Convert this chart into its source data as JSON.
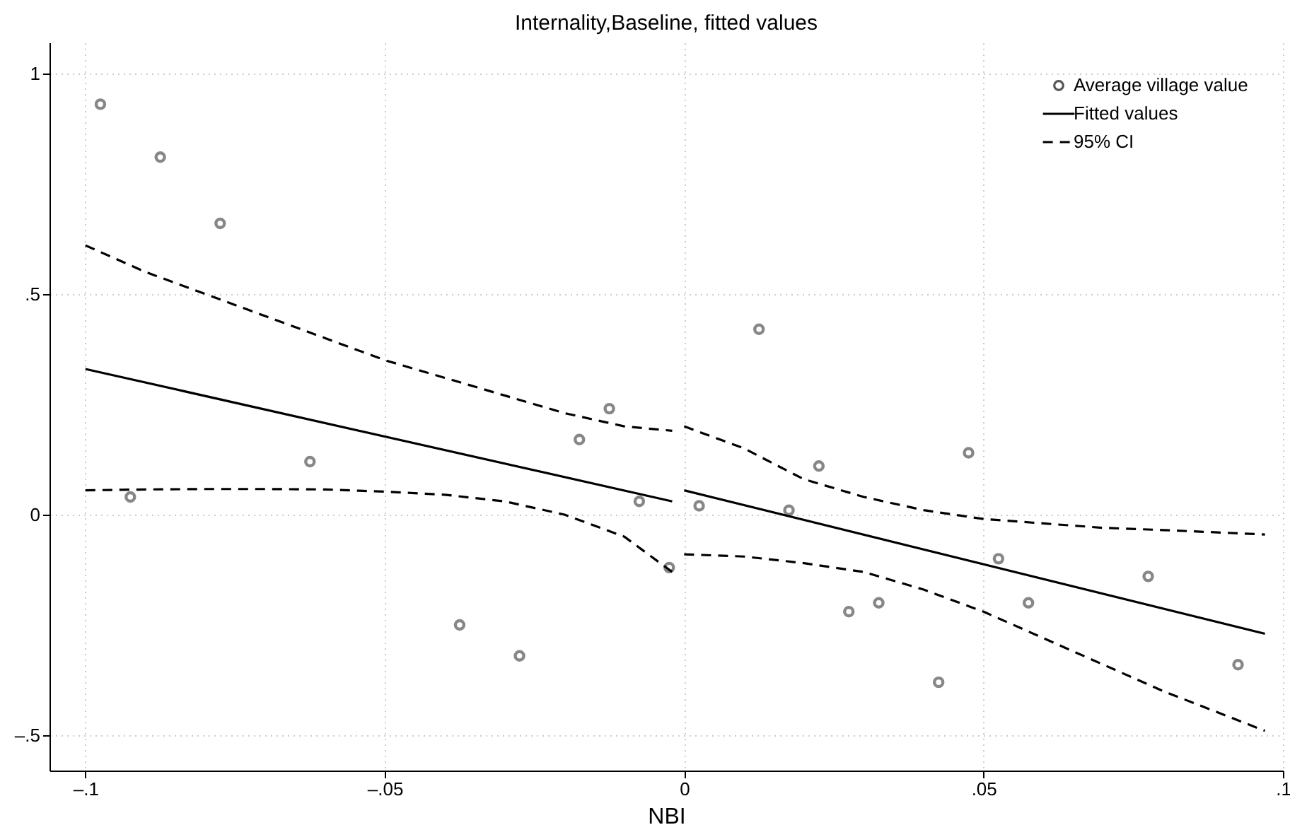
{
  "chart_data": {
    "type": "scatter",
    "title": "Internality,Baseline, fitted values",
    "xlabel": "NBI",
    "xlim": [
      -0.106,
      0.1
    ],
    "ylim": [
      -0.58,
      1.07
    ],
    "xticks": [
      {
        "value": -0.1,
        "label": "–.1"
      },
      {
        "value": -0.05,
        "label": "–.05"
      },
      0,
      {
        "value": 0.05,
        "label": ".05"
      },
      {
        "value": 0.1,
        "label": ".1"
      }
    ],
    "yticks": [
      {
        "value": -0.5,
        "label": "–.5"
      },
      0,
      {
        "value": 0.5,
        "label": ".5"
      },
      1
    ],
    "grid": true,
    "legend": "top right",
    "series": [
      {
        "name": "Average village value",
        "marker": "circle",
        "color": "#555555",
        "x": [
          -0.0975,
          -0.0925,
          -0.0875,
          -0.0775,
          -0.0625,
          -0.0375,
          -0.0275,
          -0.0175,
          -0.0125,
          -0.0075,
          -0.0025,
          0.0025,
          0.0125,
          0.0175,
          0.0225,
          0.0275,
          0.0325,
          0.0425,
          0.0475,
          0.0525,
          0.0575,
          0.0775,
          0.0925
        ],
        "values": [
          0.93,
          0.04,
          0.81,
          0.66,
          0.12,
          -0.25,
          -0.32,
          0.17,
          0.24,
          0.03,
          -0.12,
          0.02,
          0.42,
          0.01,
          0.11,
          -0.22,
          -0.2,
          -0.38,
          0.14,
          -0.1,
          -0.2,
          -0.14,
          -0.34
        ]
      },
      {
        "name": "Fitted values",
        "type": "line",
        "line_style": "solid",
        "color": "#000000",
        "x": [
          -0.1,
          -0.002
        ],
        "values": [
          0.33,
          0.03
        ]
      },
      {
        "type": "line",
        "line_style": "solid",
        "color": "#000000",
        "x": [
          0.0,
          0.097
        ],
        "values": [
          0.055,
          -0.27
        ]
      },
      {
        "name": "95% CI",
        "type": "line",
        "line_style": "dashed",
        "color": "#000000",
        "x": [
          -0.1,
          -0.09,
          -0.08,
          -0.07,
          -0.06,
          -0.05,
          -0.04,
          -0.03,
          -0.02,
          -0.01,
          -0.002
        ],
        "values": [
          0.61,
          0.55,
          0.5,
          0.45,
          0.4,
          0.35,
          0.31,
          0.27,
          0.23,
          0.2,
          0.19
        ]
      },
      {
        "type": "line",
        "line_style": "dashed",
        "color": "#000000",
        "x": [
          -0.1,
          -0.09,
          -0.08,
          -0.07,
          -0.06,
          -0.05,
          -0.04,
          -0.03,
          -0.02,
          -0.01,
          -0.002
        ],
        "values": [
          0.055,
          0.057,
          0.058,
          0.058,
          0.057,
          0.052,
          0.045,
          0.03,
          0.0,
          -0.05,
          -0.13
        ]
      },
      {
        "type": "line",
        "line_style": "dashed",
        "color": "#000000",
        "x": [
          0.0,
          0.01,
          0.02,
          0.03,
          0.04,
          0.05,
          0.06,
          0.07,
          0.08,
          0.097
        ],
        "values": [
          0.2,
          0.15,
          0.08,
          0.04,
          0.01,
          -0.01,
          -0.02,
          -0.03,
          -0.035,
          -0.045
        ]
      },
      {
        "type": "line",
        "line_style": "dashed",
        "color": "#000000",
        "x": [
          0.0,
          0.01,
          0.02,
          0.03,
          0.04,
          0.05,
          0.06,
          0.07,
          0.08,
          0.097
        ],
        "values": [
          -0.09,
          -0.095,
          -0.11,
          -0.13,
          -0.17,
          -0.22,
          -0.28,
          -0.34,
          -0.4,
          -0.49
        ]
      }
    ]
  }
}
